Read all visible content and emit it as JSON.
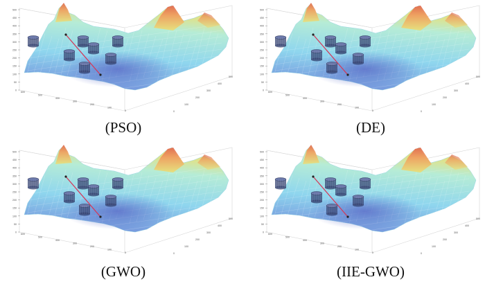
{
  "chart_data": [
    {
      "type": "3d-surface",
      "caption": "(PSO)",
      "z_ticks": [
        "500",
        "450",
        "400",
        "350",
        "300",
        "250",
        "200",
        "150",
        "100",
        "50",
        "0"
      ],
      "x_ticks": [
        "600",
        "500",
        "400",
        "300",
        "200",
        "100",
        "0"
      ],
      "y_ticks": [
        "0",
        "100",
        "200",
        "300",
        "400",
        "500"
      ],
      "path": [
        [
          120,
          60
        ],
        [
          175,
          140
        ]
      ],
      "obstacles": [
        [
          48,
          60
        ],
        [
          120,
          60
        ],
        [
          135,
          70
        ],
        [
          170,
          60
        ],
        [
          160,
          85
        ],
        [
          100,
          80
        ],
        [
          122,
          98
        ]
      ]
    },
    {
      "type": "3d-surface",
      "caption": "(DE)",
      "z_ticks": [
        "500",
        "450",
        "400",
        "350",
        "300",
        "250",
        "200",
        "150",
        "100",
        "50",
        "0"
      ],
      "x_ticks": [
        "600",
        "500",
        "400",
        "300",
        "200",
        "100",
        "0"
      ],
      "y_ticks": [
        "0",
        "100",
        "200",
        "300",
        "400",
        "500"
      ],
      "path": [
        [
          120,
          60
        ],
        [
          175,
          140
        ]
      ],
      "obstacles": [
        [
          48,
          60
        ],
        [
          120,
          60
        ],
        [
          135,
          70
        ],
        [
          170,
          60
        ],
        [
          160,
          85
        ],
        [
          100,
          80
        ],
        [
          122,
          98
        ]
      ]
    },
    {
      "type": "3d-surface",
      "caption": "(GWO)",
      "z_ticks": [
        "500",
        "450",
        "400",
        "350",
        "300",
        "250",
        "200",
        "150",
        "100",
        "50",
        "0"
      ],
      "x_ticks": [
        "600",
        "500",
        "400",
        "300",
        "200",
        "100",
        "0"
      ],
      "y_ticks": [
        "0",
        "100",
        "200",
        "300",
        "400",
        "500"
      ],
      "path": [
        [
          120,
          60
        ],
        [
          175,
          140
        ]
      ],
      "obstacles": [
        [
          48,
          60
        ],
        [
          120,
          60
        ],
        [
          135,
          70
        ],
        [
          170,
          60
        ],
        [
          160,
          85
        ],
        [
          100,
          80
        ],
        [
          122,
          98
        ]
      ]
    },
    {
      "type": "3d-surface",
      "caption": "(IIE-GWO)",
      "z_ticks": [
        "500",
        "450",
        "400",
        "350",
        "300",
        "250",
        "200",
        "150",
        "100",
        "50",
        "0"
      ],
      "x_ticks": [
        "600",
        "500",
        "400",
        "300",
        "200",
        "100",
        "0"
      ],
      "y_ticks": [
        "0",
        "100",
        "200",
        "300",
        "400",
        "500"
      ],
      "path": [
        [
          120,
          60
        ],
        [
          175,
          140
        ]
      ],
      "obstacles": [
        [
          48,
          60
        ],
        [
          120,
          60
        ],
        [
          135,
          70
        ],
        [
          170,
          60
        ],
        [
          160,
          85
        ],
        [
          100,
          80
        ],
        [
          122,
          98
        ]
      ]
    }
  ],
  "colors": {
    "low": "#6f86d8",
    "mid": "#8fd6ee",
    "high_yellow": "#e8e07a",
    "peak": "#e06a50",
    "path": "#d33a5a",
    "obstacle": "#33406e"
  }
}
